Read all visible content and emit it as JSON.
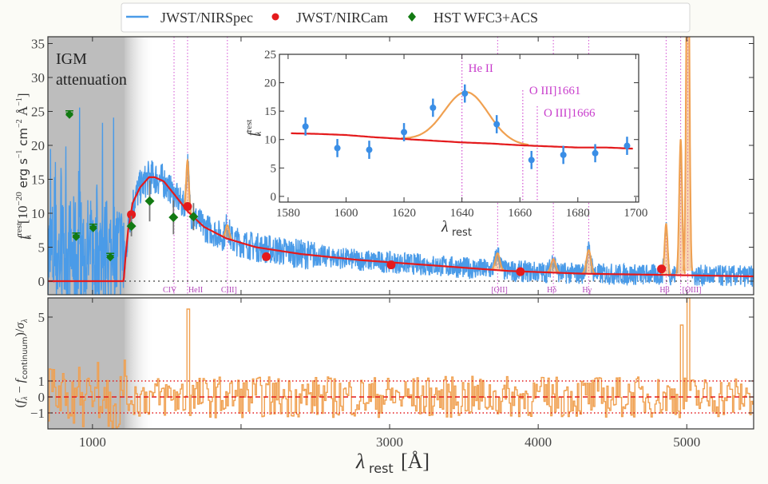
{
  "chart_data": [
    {
      "id": "main",
      "type": "line",
      "title": "",
      "xlabel": "λrest [Å]",
      "xlabel_base": "λ",
      "xlabel_sub": "rest",
      "xlabel_unit": "[Å]",
      "ylabel": "f_λ^rest [10^-20 erg s^-1 cm^-2 Å^-1]",
      "xlim": [
        700,
        5450
      ],
      "ylim": [
        -2,
        36
      ],
      "xticks": [
        1000,
        2000,
        3000,
        4000,
        5000
      ],
      "yticks": [
        0,
        5,
        10,
        15,
        20,
        25,
        30,
        35
      ],
      "grid": false,
      "annotation": [
        "IGM",
        "attenuation"
      ],
      "igm_shade": {
        "solid_until": 1216,
        "fade_until": 1420
      },
      "zero_line": 0,
      "legend": {
        "placement": "top-center-outside",
        "entries": [
          {
            "label": "JWST/NIRSpec",
            "marker": "line",
            "color": "#4a9be8"
          },
          {
            "label": "JWST/NIRCam",
            "marker": "circle",
            "color": "#e41a1c"
          },
          {
            "label": "HST WFC3+ACS",
            "marker": "diamond",
            "color": "#127a12"
          }
        ]
      },
      "emission_lines": [
        {
          "label": "CIV",
          "wavelength": 1549
        },
        {
          "label": "HeII",
          "wavelength": 1640
        },
        {
          "label": "CIII]",
          "wavelength": 1908
        },
        {
          "label": "[OII]",
          "wavelength": 3727
        },
        {
          "label": "Hδ",
          "wavelength": 4102
        },
        {
          "label": "Hγ",
          "wavelength": 4340
        },
        {
          "label": "Hβ",
          "wavelength": 4861
        },
        {
          "label": "[OIII]",
          "wavelength": 4959
        },
        {
          "label": "",
          "wavelength": 5007
        }
      ],
      "series": [
        {
          "name": "JWST/NIRCam",
          "kind": "points",
          "color": "#e41a1c",
          "x": [
            1262,
            1640,
            2170,
            3010,
            3880,
            4830
          ],
          "y": [
            9.8,
            11.0,
            3.6,
            2.4,
            1.4,
            1.8
          ]
        },
        {
          "name": "HST WFC3+ACS detections",
          "kind": "points",
          "color": "#127a12",
          "x": [
            1262,
            1385,
            1545,
            1680
          ],
          "y": [
            8.1,
            11.8,
            9.4,
            9.5
          ],
          "yerr": [
            1.5,
            3.0,
            2.5,
            2.0
          ]
        },
        {
          "name": "HST WFC3+ACS upper limits",
          "kind": "upper_limits",
          "color": "#127a12",
          "x": [
            845,
            890,
            1005,
            1120
          ],
          "y": [
            24.5,
            6.5,
            7.8,
            3.5
          ]
        },
        {
          "name": "Continuum model",
          "kind": "line",
          "color": "#e41a1c",
          "x": [
            700,
            1210,
            1222,
            1240,
            1270,
            1320,
            1380,
            1420,
            1480,
            1550,
            1640,
            1750,
            1900,
            2100,
            2400,
            2800,
            3300,
            3800,
            4300,
            4900,
            5450
          ],
          "y": [
            0,
            0,
            3.5,
            7.5,
            11.5,
            13.8,
            15.3,
            15.3,
            14.7,
            12.8,
            10.3,
            8.0,
            6.3,
            5.0,
            4.0,
            3.1,
            2.3,
            1.5,
            1.1,
            0.9,
            0.7
          ]
        },
        {
          "name": "Emission line fits",
          "kind": "gaussians",
          "color": "#f0a050",
          "lines": [
            {
              "center": 1640,
              "peak": 7.5,
              "sigma": 9
            },
            {
              "center": 1908,
              "peak": 2.0,
              "sigma": 12
            },
            {
              "center": 3727,
              "peak": 2.5,
              "sigma": 15
            },
            {
              "center": 4102,
              "peak": 2.0,
              "sigma": 15
            },
            {
              "center": 4340,
              "peak": 3.5,
              "sigma": 15
            },
            {
              "center": 4861,
              "peak": 7.5,
              "sigma": 10
            },
            {
              "center": 4959,
              "peak": 20.0,
              "sigma": 10
            },
            {
              "center": 5007,
              "peak": 60.0,
              "sigma": 10
            }
          ]
        },
        {
          "name": "JWST/NIRSpec",
          "kind": "noisy_spectrum",
          "color": "#4a9be8",
          "note": "high-frequency noisy spectrum following continuum plus lines; amplitude ~12 below 1216 Å, ~3 above"
        }
      ]
    },
    {
      "id": "residual",
      "type": "line",
      "xlabel": "λrest [Å]",
      "ylabel": "(f_λ − f_continuum)/σ_λ",
      "ylabel_parts": {
        "open": "(",
        "f": "f",
        "sub_lambda": "λ",
        "minus": " − ",
        "f2": "f",
        "sub_cont": "continuum",
        "close": ")/",
        "sigma": "σ",
        "sub_sigma": "λ"
      },
      "xlim": [
        700,
        5450
      ],
      "ylim": [
        -2,
        6.2
      ],
      "yticks": [
        -1,
        0,
        1,
        5
      ],
      "xticks": [
        1000,
        2000,
        3000,
        4000,
        5000
      ],
      "xticklabels": [
        "1000",
        "",
        "3000",
        "4000",
        "5000"
      ],
      "reference_lines": [
        {
          "y": 1,
          "style": "dotted",
          "color": "#e41a1c"
        },
        {
          "y": 0,
          "style": "dashed",
          "color": "#e41a1c"
        },
        {
          "y": -1,
          "style": "dotted",
          "color": "#e41a1c"
        }
      ],
      "series": [
        {
          "name": "Residual",
          "kind": "step_noise",
          "color": "#f0a050",
          "spikes": [
            {
              "x": 1640,
              "y": 5.5
            },
            {
              "x": 4959,
              "y": 4.5
            },
            {
              "x": 5007,
              "y": 6.2
            }
          ]
        }
      ]
    },
    {
      "id": "inset",
      "type": "scatter",
      "xlabel": "λrest",
      "xlabel_base": "λ",
      "xlabel_sub": "rest",
      "ylabel": "f_λ^rest",
      "ylabel_base": "f",
      "ylabel_sup": "rest",
      "ylabel_sub": "λ",
      "xlim": [
        1577,
        1701
      ],
      "ylim": [
        -1,
        25
      ],
      "xticks": [
        1580,
        1600,
        1620,
        1640,
        1660,
        1680,
        1700
      ],
      "yticks": [
        0,
        5,
        10,
        15,
        20,
        25
      ],
      "line_markers": [
        {
          "label": "He II",
          "wavelength": 1640
        },
        {
          "label": "O III]1661",
          "wavelength": 1661
        },
        {
          "label": "O III]1666",
          "wavelength": 1666
        }
      ],
      "series": [
        {
          "name": "NIRSpec binned",
          "kind": "errorbar",
          "color": "#3a8ee6",
          "x": [
            1586,
            1597,
            1608,
            1620,
            1630,
            1641,
            1652,
            1664,
            1675,
            1686,
            1697
          ],
          "y": [
            12.3,
            8.5,
            8.2,
            11.3,
            15.6,
            18.1,
            12.7,
            6.4,
            7.3,
            7.6,
            8.9
          ],
          "yerr": [
            1.6,
            1.6,
            1.6,
            1.6,
            1.6,
            1.6,
            1.6,
            1.6,
            1.6,
            1.6,
            1.6
          ]
        },
        {
          "name": "Continuum",
          "kind": "line",
          "color": "#e41a1c",
          "x": [
            1581,
            1590,
            1600,
            1610,
            1620,
            1630,
            1640,
            1650,
            1660,
            1670,
            1680,
            1690,
            1699
          ],
          "y": [
            11.1,
            11.0,
            10.8,
            10.4,
            10.1,
            9.8,
            9.5,
            9.3,
            9.0,
            8.8,
            8.6,
            8.6,
            8.4
          ]
        },
        {
          "name": "He II fit",
          "kind": "gaussian_over_continuum",
          "color": "#f0a050",
          "center": 1641.5,
          "peak": 8.9,
          "sigma": 7.5
        }
      ]
    }
  ]
}
